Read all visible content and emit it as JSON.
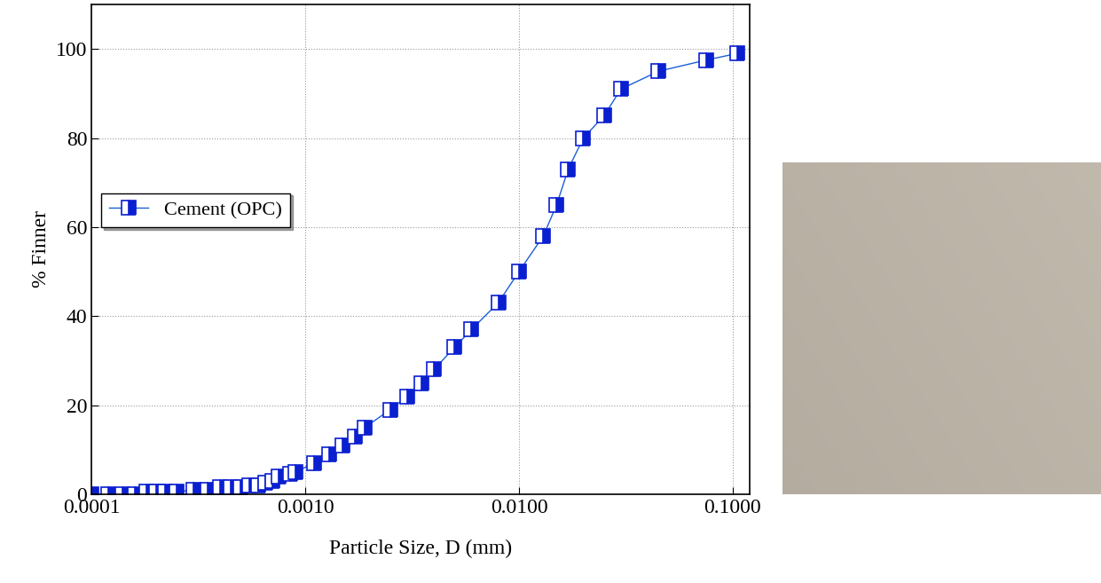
{
  "chart_data": {
    "type": "line",
    "x_label": "Particle Size, D (mm)",
    "y_label": "% Finner",
    "log": "x",
    "grid": true,
    "legend": "center left",
    "xlim": [
      0.0001,
      0.12
    ],
    "ylim": [
      0,
      110
    ],
    "xticks": [
      0.0001,
      {
        "value": 0.001,
        "label": "0.0010"
      },
      {
        "value": 0.01,
        "label": "0.0100"
      },
      {
        "value": 0.1,
        "label": "0.1000"
      }
    ],
    "yticks": [
      0,
      20,
      40,
      60,
      80,
      100
    ],
    "x": [
      0.0001,
      0.00012,
      0.00014,
      0.00016,
      0.00018,
      0.0002,
      0.00022,
      0.00025,
      0.0003,
      0.00035,
      0.0004,
      0.00045,
      0.0005,
      0.00055,
      0.0006,
      0.00065,
      0.0007,
      0.00075,
      0.00085,
      0.0009,
      0.0011,
      0.0013,
      0.0015,
      0.0017,
      0.0019,
      0.0025,
      0.003,
      0.0035,
      0.004,
      0.005,
      0.006,
      0.008,
      0.01,
      0.013,
      0.015,
      0.017,
      0.02,
      0.025,
      0.03,
      0.045,
      0.075,
      0.105
    ],
    "series": [
      {
        "name": "Cement (OPC)",
        "color": "#1a5fd6",
        "marker": "s",
        "line_style": "solid",
        "values": [
          0,
          0,
          0,
          0,
          0.5,
          0.5,
          0.5,
          0.5,
          1,
          1,
          1.5,
          1.5,
          1.5,
          2,
          2,
          2.5,
          3,
          4,
          4.5,
          5,
          7,
          9,
          11,
          13,
          15,
          19,
          22,
          25,
          28,
          33,
          37,
          43,
          50,
          58,
          65,
          73,
          80,
          85,
          91,
          95,
          97.5,
          99
        ]
      }
    ]
  }
}
